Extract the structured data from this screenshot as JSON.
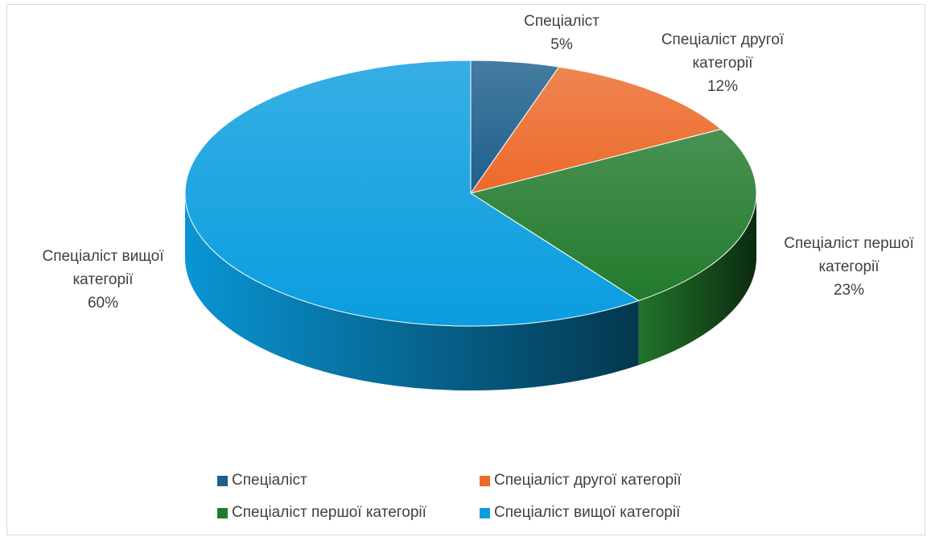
{
  "chart_data": {
    "type": "pie",
    "style": "3d",
    "categories": [
      "Спеціаліст",
      "Спеціаліст другої категорії",
      "Спеціаліст першої категорії",
      "Спеціаліст вищої категорії"
    ],
    "values": [
      5,
      12,
      23,
      60
    ],
    "value_labels": [
      "5%",
      "12%",
      "23%",
      "60%"
    ],
    "colors": [
      "#1d5f8c",
      "#ec6a2a",
      "#227a2d",
      "#0a9ddf"
    ],
    "legend": "bottom"
  }
}
